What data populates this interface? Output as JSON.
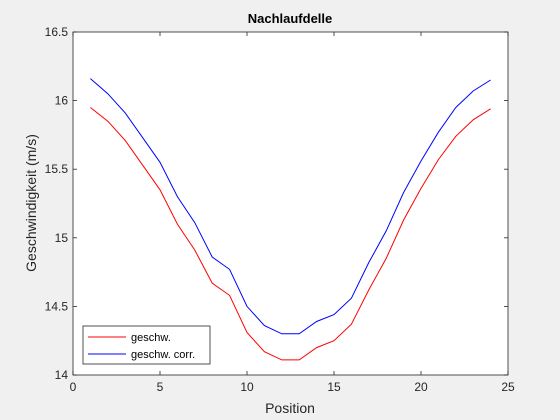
{
  "chart_data": {
    "type": "line",
    "title": "Nachlaufdelle",
    "xlabel": "Position",
    "ylabel": "Geschwindigkeit (m/s)",
    "xlim": [
      0,
      25
    ],
    "ylim": [
      14,
      16.5
    ],
    "xticks": [
      0,
      5,
      10,
      15,
      20,
      25
    ],
    "xtick_labels": [
      "0",
      "5",
      "10",
      "15",
      "20",
      "25"
    ],
    "yticks": [
      14,
      14.5,
      15,
      15.5,
      16,
      16.5
    ],
    "ytick_labels": [
      "14",
      "14.5",
      "15",
      "15.5",
      "16",
      "16.5"
    ],
    "grid": false,
    "legend_position": "bottom-left",
    "x": [
      1,
      2,
      3,
      4,
      5,
      6,
      7,
      8,
      9,
      10,
      11,
      12,
      13,
      14,
      15,
      16,
      17,
      18,
      19,
      20,
      21,
      22,
      23,
      24
    ],
    "series": [
      {
        "name": "geschw.",
        "color": "#ff0000",
        "values": [
          15.95,
          15.85,
          15.71,
          15.53,
          15.35,
          15.1,
          14.91,
          14.67,
          14.58,
          14.31,
          14.17,
          14.11,
          14.11,
          14.2,
          14.25,
          14.37,
          14.62,
          14.85,
          15.13,
          15.36,
          15.57,
          15.74,
          15.86,
          15.94
        ]
      },
      {
        "name": "geschw. corr.",
        "color": "#0000ff",
        "values": [
          16.16,
          16.05,
          15.91,
          15.73,
          15.55,
          15.3,
          15.11,
          14.86,
          14.77,
          14.5,
          14.36,
          14.3,
          14.3,
          14.39,
          14.44,
          14.56,
          14.82,
          15.05,
          15.33,
          15.56,
          15.77,
          15.95,
          16.07,
          16.15
        ]
      }
    ]
  }
}
